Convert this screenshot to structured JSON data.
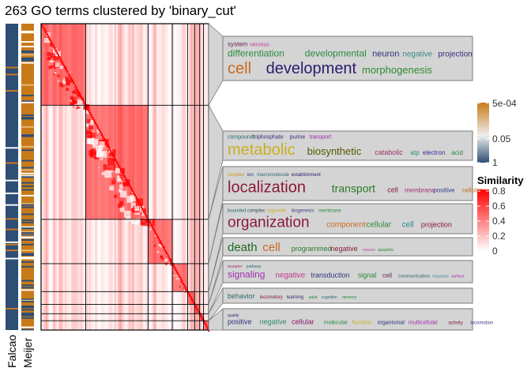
{
  "title": "263 GO terms clustered by 'binary_cut'",
  "annotation_columns": [
    "Falcao",
    "Meijer"
  ],
  "colors": {
    "falcao_main": "#2e4e74",
    "meijer_main": "#c97a18",
    "heat_high": "#ff0000",
    "heat_low": "#ffffff",
    "pvalue_high": "#c97a18",
    "pvalue_mid": "#eeeeee",
    "pvalue_low": "#2e4e74",
    "box_fill": "#d4d4d4",
    "box_stroke": "#7a7a7a"
  },
  "chart_data": {
    "type": "heatmap",
    "method": "binary_cut",
    "n_terms": 263,
    "clusters": [
      {
        "size": 70,
        "words": [
          {
            "t": "system",
            "s": 8,
            "c": "#6b1f4f"
          },
          {
            "t": "nervous",
            "s": 7,
            "c": "#c13aa0"
          },
          {
            "t": "differentiation",
            "s": 12,
            "c": "#2a8a3e"
          },
          {
            "t": "developmental",
            "s": 12,
            "c": "#2a8a3e"
          },
          {
            "t": "neuron",
            "s": 11,
            "c": "#2c2f7a"
          },
          {
            "t": "negative",
            "s": 10,
            "c": "#3c8a8a"
          },
          {
            "t": "projection",
            "s": 10,
            "c": "#3a2a7a"
          },
          {
            "t": "cell",
            "s": 20,
            "c": "#c86a20"
          },
          {
            "t": "development",
            "s": 20,
            "c": "#2c1a6e"
          },
          {
            "t": "morphogenesis",
            "s": 13,
            "c": "#2f8a2f"
          }
        ]
      },
      {
        "size": 98,
        "words": [
          {
            "t": "compound",
            "s": 7,
            "c": "#2a6a6a"
          },
          {
            "t": "triphosphate",
            "s": 7,
            "c": "#3a2a7a"
          },
          {
            "t": "purine",
            "s": 7,
            "c": "#3a2a7a"
          },
          {
            "t": "transport",
            "s": 7,
            "c": "#a02ab0"
          },
          {
            "t": "metabolic",
            "s": 20,
            "c": "#c9b020"
          },
          {
            "t": "biosynthetic",
            "s": 13,
            "c": "#555500"
          },
          {
            "t": "catabolic",
            "s": 9,
            "c": "#a0306a"
          },
          {
            "t": "atp",
            "s": 8,
            "c": "#2a8a6a"
          },
          {
            "t": "electron",
            "s": 8,
            "c": "#3a2a9a"
          },
          {
            "t": "acid",
            "s": 8,
            "c": "#2a8a3e"
          }
        ]
      },
      {
        "size": 38,
        "words": [
          {
            "t": "coupled",
            "s": 6,
            "c": "#c99a20"
          },
          {
            "t": "ion",
            "s": 6,
            "c": "#2c2f7a"
          },
          {
            "t": "macromolecule",
            "s": 6,
            "c": "#2a6a6a"
          },
          {
            "t": "establishment",
            "s": 6,
            "c": "#2c1a6e"
          },
          {
            "t": "localization",
            "s": 20,
            "c": "#8a1a3a"
          },
          {
            "t": "transport",
            "s": 14,
            "c": "#2a7a2a"
          },
          {
            "t": "cell",
            "s": 9,
            "c": "#8a1a3a"
          },
          {
            "t": "membrane",
            "s": 8,
            "c": "#a0306a"
          },
          {
            "t": "positive",
            "s": 8,
            "c": "#3a3a8a"
          },
          {
            "t": "cellular",
            "s": 8,
            "c": "#c07020"
          }
        ]
      },
      {
        "size": 24,
        "words": [
          {
            "t": "bounded",
            "s": 6,
            "c": "#2a6a6a"
          },
          {
            "t": "complex",
            "s": 6,
            "c": "#2a4a4a"
          },
          {
            "t": "organelle",
            "s": 6,
            "c": "#c9b020"
          },
          {
            "t": "biogenesis",
            "s": 6,
            "c": "#3a3a8a"
          },
          {
            "t": "membrane",
            "s": 6,
            "c": "#2a8a3e"
          },
          {
            "t": "organization",
            "s": 19,
            "c": "#8a1a3a"
          },
          {
            "t": "component",
            "s": 10,
            "c": "#c86a20"
          },
          {
            "t": "cellular",
            "s": 10,
            "c": "#2a8a3e"
          },
          {
            "t": "cell",
            "s": 10,
            "c": "#2a8a8a"
          },
          {
            "t": "projection",
            "s": 9,
            "c": "#8a1a3a"
          }
        ]
      },
      {
        "size": 11,
        "words": [
          {
            "t": "death",
            "s": 15,
            "c": "#1e6a1e"
          },
          {
            "t": "cell",
            "s": 15,
            "c": "#c86a20"
          },
          {
            "t": "programmed",
            "s": 9,
            "c": "#2a7a2a"
          },
          {
            "t": "negative",
            "s": 9,
            "c": "#8a1a3a"
          },
          {
            "t": "neuron",
            "s": 5,
            "c": "#c13aa0"
          },
          {
            "t": "apoptotic",
            "s": 5,
            "c": "#2a8a3e"
          }
        ]
      },
      {
        "size": 8,
        "words": [
          {
            "t": "receptor",
            "s": 5,
            "c": "#a0306a"
          },
          {
            "t": "pathway",
            "s": 5,
            "c": "#2a6a6a"
          },
          {
            "t": "signaling",
            "s": 12,
            "c": "#a02ab0"
          },
          {
            "t": "negative",
            "s": 10,
            "c": "#c13a8a"
          },
          {
            "t": "transduction",
            "s": 9,
            "c": "#2c2f7a"
          },
          {
            "t": "signal",
            "s": 9,
            "c": "#2a8a3e"
          },
          {
            "t": "cell",
            "s": 8,
            "c": "#6b1f4f"
          },
          {
            "t": "communication",
            "s": 6,
            "c": "#3a6a6a"
          },
          {
            "t": "response",
            "s": 5,
            "c": "#3a8a8a"
          },
          {
            "t": "surface",
            "s": 5,
            "c": "#a02ab0"
          }
        ]
      },
      {
        "size": 6,
        "words": [
          {
            "t": "behavior",
            "s": 9,
            "c": "#2a6a6a"
          },
          {
            "t": "locomotory",
            "s": 6,
            "c": "#8a1a3a"
          },
          {
            "t": "learning",
            "s": 6,
            "c": "#2c2f7a"
          },
          {
            "t": "adult",
            "s": 5,
            "c": "#2a8a3e"
          },
          {
            "t": "cognition",
            "s": 5,
            "c": "#2a6a6a"
          },
          {
            "t": "memory",
            "s": 5,
            "c": "#2a8a3e"
          }
        ]
      },
      {
        "size": 8,
        "words": [
          {
            "t": "quality",
            "s": 5,
            "c": "#2c2f7a"
          },
          {
            "t": "positive",
            "s": 9,
            "c": "#2c2f7a"
          },
          {
            "t": "negative",
            "s": 9,
            "c": "#2a8a6a"
          },
          {
            "t": "cellular",
            "s": 9,
            "c": "#8a1a6a"
          },
          {
            "t": "molecular",
            "s": 7,
            "c": "#2a8a3e"
          },
          {
            "t": "function",
            "s": 7,
            "c": "#c9b020"
          },
          {
            "t": "organismal",
            "s": 7,
            "c": "#2c2f7a"
          },
          {
            "t": "multicellular",
            "s": 7,
            "c": "#a02ab0"
          },
          {
            "t": "activity",
            "s": 6,
            "c": "#8a1a3a"
          },
          {
            "t": "locomotion",
            "s": 6,
            "c": "#3a3a8a"
          }
        ]
      }
    ],
    "pvalue_legend": {
      "ticks": [
        "5e-04",
        "0.05",
        "1"
      ],
      "values": [
        0.0005,
        0.05,
        1
      ]
    },
    "similarity_legend": {
      "title": "Similarity",
      "ticks": [
        "0.8",
        "0.6",
        "0.4",
        "0.2",
        "0"
      ],
      "values": [
        0.8,
        0.6,
        0.4,
        0.2,
        0
      ]
    }
  }
}
